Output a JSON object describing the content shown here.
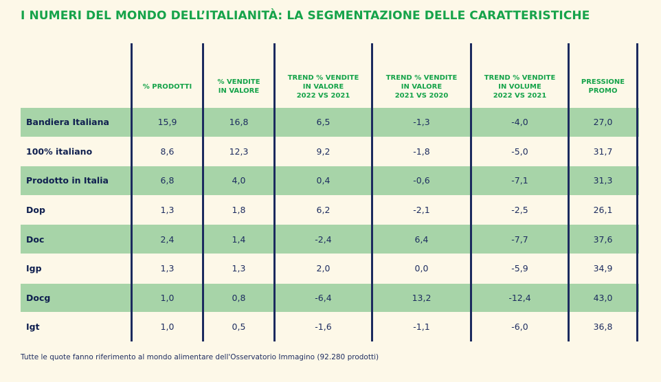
{
  "title": "I NUMERI DEL MONDO DELL’ITALIANITÀ: LA SEGMENTAZIONE DELLE CARATTERISTICHE",
  "columns": [
    "% PRODOTTI",
    "% VENDITE\nIN VALORE",
    "TREND % VENDITE\nIN VALORE\n2022 VS 2021",
    "TREND % VENDITE\nIN VALORE\n2021 VS 2020",
    "TREND % VENDITE\nIN VOLUME\n2022 VS 2021",
    "PRESSIONE\nPROMO"
  ],
  "rows": [
    {
      "label": "Bandiera Italiana",
      "values": [
        "15,9",
        "16,8",
        "6,5",
        "-1,3",
        "-4,0",
        "27,0"
      ]
    },
    {
      "label": "100% italiano",
      "values": [
        "8,6",
        "12,3",
        "9,2",
        "-1,8",
        "-5,0",
        "31,7"
      ]
    },
    {
      "label": "Prodotto in Italia",
      "values": [
        "6,8",
        "4,0",
        "0,4",
        "-0,6",
        "-7,1",
        "31,3"
      ]
    },
    {
      "label": "Dop",
      "values": [
        "1,3",
        "1,8",
        "6,2",
        "-2,1",
        "-2,5",
        "26,1"
      ]
    },
    {
      "label": "Doc",
      "values": [
        "2,4",
        "1,4",
        "-2,4",
        "6,4",
        "-7,7",
        "37,6"
      ]
    },
    {
      "label": "Igp",
      "values": [
        "1,3",
        "1,3",
        "2,0",
        "0,0",
        "-5,9",
        "34,9"
      ]
    },
    {
      "label": "Docg",
      "values": [
        "1,0",
        "0,8",
        "-6,4",
        "13,2",
        "-12,4",
        "43,0"
      ]
    },
    {
      "label": "Igt",
      "values": [
        "1,0",
        "0,5",
        "-1,6",
        "-1,1",
        "-6,0",
        "36,8"
      ]
    }
  ],
  "footnote": "Tutte le quote fanno riferimento al mondo alimentare dell'Osservatorio Immagino (92.280 prodotti)",
  "colors": {
    "title": "#16a34a",
    "header": "#16a34a",
    "shaded_row": "#a7d4a8",
    "lines": "#1b2a5e",
    "background": "#fdf8e8"
  }
}
